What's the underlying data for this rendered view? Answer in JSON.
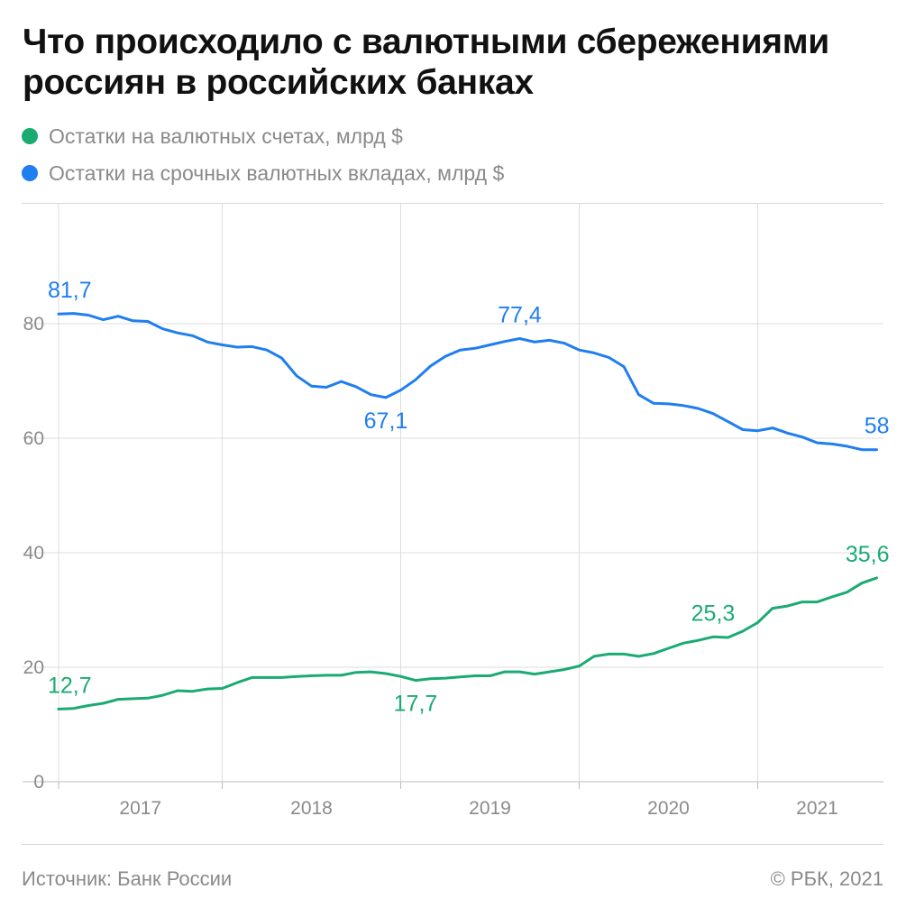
{
  "title": "Что происходило с валютными сбережениями россиян в российских банках",
  "source": "Источник: Банк России",
  "copyright": "© РБК, 2021",
  "chart_data": {
    "type": "line",
    "ylim": [
      0,
      100
    ],
    "yticks": [
      0,
      20,
      40,
      60,
      80
    ],
    "ytick_labels": [
      "0",
      "20",
      "40",
      "60",
      "80"
    ],
    "x_range": [
      "2016-08",
      "2021-05"
    ],
    "year_labels": [
      "2017",
      "2018",
      "2019",
      "2020",
      "2021"
    ],
    "year_gridlines": [
      "2017-07",
      "2018-07",
      "2019-07",
      "2020-07"
    ],
    "legend_position": "top-left",
    "grid": true,
    "series": [
      {
        "name": "Остатки на валютных счетах, млрд $",
        "color": "#1aab73",
        "start": "2016-08",
        "values": [
          12.7,
          12.8,
          13.3,
          13.7,
          14.4,
          14.5,
          14.6,
          15.1,
          15.9,
          15.8,
          16.2,
          16.3,
          17.3,
          18.2,
          18.2,
          18.2,
          18.4,
          18.5,
          18.6,
          18.6,
          19.1,
          19.2,
          18.9,
          18.4,
          17.7,
          18.0,
          18.1,
          18.3,
          18.5,
          18.5,
          19.2,
          19.2,
          18.8,
          19.2,
          19.6,
          20.2,
          21.9,
          22.3,
          22.3,
          21.9,
          22.4,
          23.3,
          24.2,
          24.7,
          25.3,
          25.2,
          26.3,
          27.8,
          30.3,
          30.7,
          31.4,
          31.4,
          32.3,
          33.1,
          34.7,
          35.6
        ],
        "labels": [
          {
            "text": "12,7",
            "index": 0
          },
          {
            "text": "17,7",
            "index": 24
          },
          {
            "text": "25,3",
            "index": 44
          },
          {
            "text": "35,6",
            "index": 55
          }
        ]
      },
      {
        "name": "Остатки на срочных валютных вкладах, млрд $",
        "color": "#1f7ef0",
        "start": "2016-08",
        "values": [
          81.7,
          81.8,
          81.5,
          80.7,
          81.3,
          80.5,
          80.4,
          79.1,
          78.4,
          77.9,
          76.8,
          76.3,
          75.9,
          76.0,
          75.4,
          74.0,
          70.9,
          69.1,
          68.9,
          69.9,
          69.0,
          67.6,
          67.1,
          68.4,
          70.2,
          72.6,
          74.3,
          75.4,
          75.7,
          76.3,
          76.9,
          77.4,
          76.8,
          77.1,
          76.6,
          75.4,
          74.9,
          74.1,
          72.5,
          67.6,
          66.1,
          66.0,
          65.7,
          65.2,
          64.3,
          62.9,
          61.5,
          61.3,
          61.8,
          60.9,
          60.2,
          59.2,
          59.0,
          58.6,
          58.0,
          58.0
        ],
        "labels": [
          {
            "text": "81,7",
            "index": 0
          },
          {
            "text": "67,1",
            "index": 22
          },
          {
            "text": "77,4",
            "index": 31
          },
          {
            "text": "58",
            "index": 55
          }
        ]
      }
    ]
  }
}
